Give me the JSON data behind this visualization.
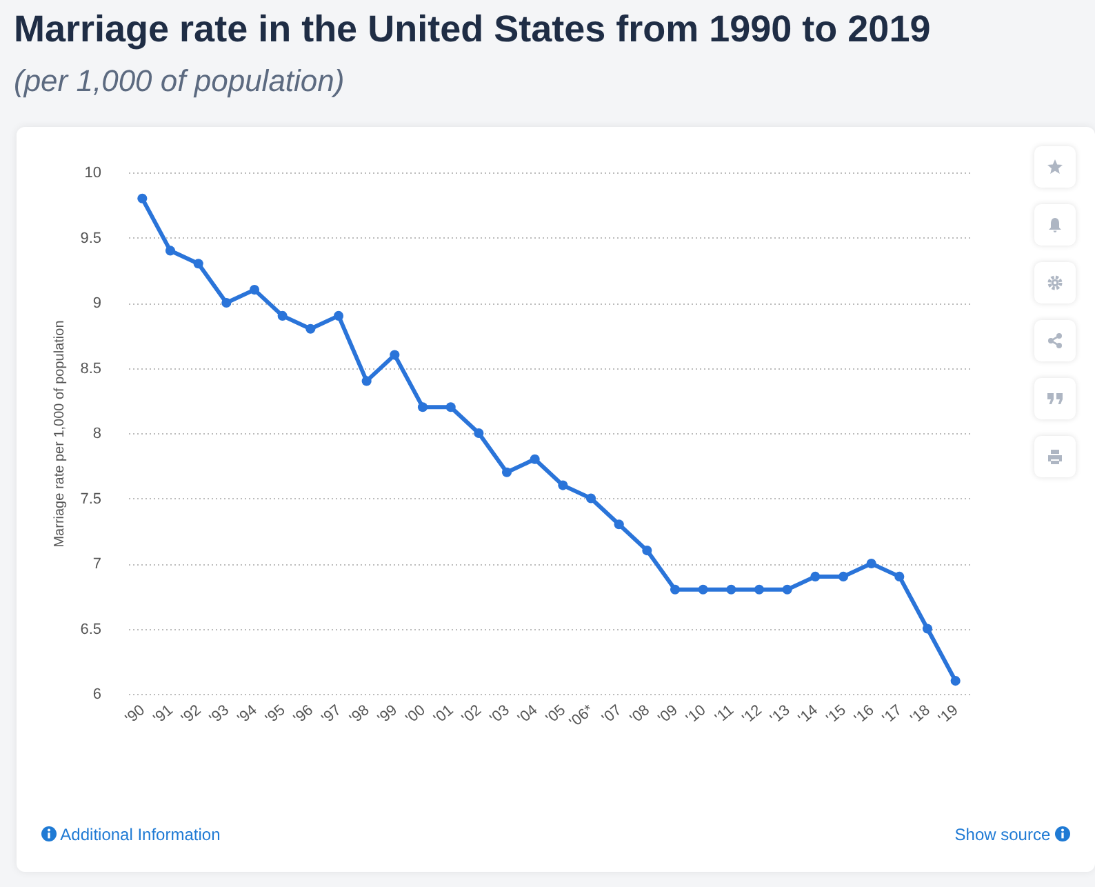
{
  "chart_data": {
    "type": "line",
    "title": "Marriage rate in the United States from 1990 to 2019",
    "subtitle": "(per 1,000 of population)",
    "ylabel": "Marriage rate per 1,000 of population",
    "categories": [
      "'90",
      "'91",
      "'92",
      "'93",
      "'94",
      "'95",
      "'96",
      "'97",
      "'98",
      "'99",
      "'00",
      "'01",
      "'02",
      "'03",
      "'04",
      "'05",
      "'06*",
      "'07",
      "'08",
      "'09",
      "'10",
      "'11",
      "'12",
      "'13",
      "'14",
      "'15",
      "'16",
      "'17",
      "'18",
      "'19"
    ],
    "series": [
      {
        "color": "#2a74d9",
        "values": [
          9.8,
          9.4,
          9.3,
          9.0,
          9.1,
          8.9,
          8.8,
          8.9,
          8.4,
          8.6,
          8.2,
          8.2,
          8.0,
          7.7,
          7.8,
          7.6,
          7.5,
          7.3,
          7.1,
          6.8,
          6.8,
          6.8,
          6.8,
          6.8,
          6.9,
          6.9,
          7.0,
          6.9,
          6.5,
          6.1
        ]
      }
    ],
    "ylim": [
      6,
      10
    ],
    "yticks": [
      6,
      6.5,
      7,
      7.5,
      8,
      8.5,
      9,
      9.5,
      10
    ],
    "grid": "y",
    "marker": "circle",
    "line_style": "solid",
    "annotations": [
      "Additional Information",
      "Show source"
    ]
  }
}
